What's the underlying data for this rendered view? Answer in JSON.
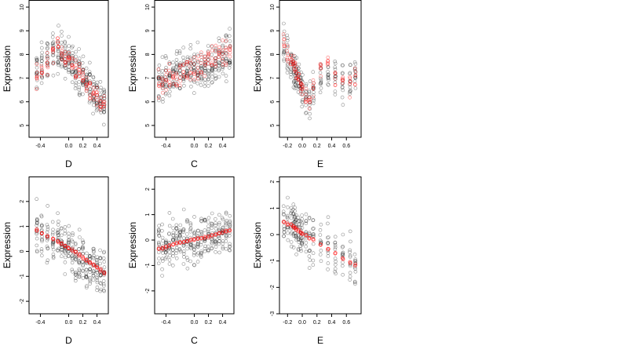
{
  "chart_data": [
    {
      "type": "scatter",
      "xlabel": "D",
      "ylabel": "Expression",
      "xlim": [
        -0.56,
        0.56
      ],
      "ylim": [
        4.5,
        10.3
      ],
      "xticks": [
        -0.4,
        0.0,
        0.2,
        0.4
      ],
      "xtick_labels": [
        "-0.4",
        "0.0",
        "0.2",
        "0.4"
      ],
      "yticks": [
        5,
        6,
        7,
        8,
        9,
        10
      ],
      "ytick_labels": [
        "5",
        "6",
        "7",
        "8",
        "9",
        "10"
      ],
      "x_groups": [
        -0.45,
        -0.38,
        -0.3,
        -0.22,
        -0.15,
        -0.1,
        -0.05,
        0.0,
        0.05,
        0.1,
        0.15,
        0.2,
        0.25,
        0.3,
        0.35,
        0.4,
        0.45,
        0.5
      ],
      "observed": {
        "trend": [
          7.3,
          7.5,
          7.8,
          8.1,
          8.2,
          8.0,
          7.9,
          7.7,
          7.6,
          7.5,
          7.3,
          7.0,
          6.9,
          6.7,
          6.5,
          6.3,
          6.1,
          5.9
        ],
        "spread": 0.9,
        "per_group": 16,
        "color": "#000000"
      },
      "fitted": {
        "trend": [
          7.0,
          7.3,
          7.7,
          8.2,
          8.3,
          8.1,
          7.9,
          7.8,
          7.6,
          7.4,
          7.2,
          7.0,
          6.8,
          6.6,
          6.4,
          6.2,
          6.0,
          5.8
        ],
        "spread": 0.45,
        "per_group": 7,
        "color": "#ff0000"
      }
    },
    {
      "type": "scatter",
      "xlabel": "C",
      "ylabel": "Expression",
      "xlim": [
        -0.56,
        0.56
      ],
      "ylim": [
        4.5,
        10.3
      ],
      "xticks": [
        -0.4,
        0.0,
        0.2,
        0.4
      ],
      "xtick_labels": [
        "-0.4",
        "0.0",
        "0.2",
        "0.4"
      ],
      "yticks": [
        5,
        6,
        7,
        8,
        9,
        10
      ],
      "ytick_labels": [
        "5",
        "6",
        "7",
        "8",
        "9",
        "10"
      ],
      "x_groups": [
        -0.5,
        -0.45,
        -0.4,
        -0.35,
        -0.3,
        -0.25,
        -0.2,
        -0.15,
        -0.1,
        -0.05,
        0.0,
        0.05,
        0.1,
        0.15,
        0.2,
        0.25,
        0.3,
        0.35,
        0.4,
        0.45,
        0.5
      ],
      "observed": {
        "trend": [
          6.8,
          6.9,
          7.0,
          7.0,
          7.1,
          7.1,
          7.2,
          7.2,
          7.3,
          7.3,
          7.3,
          7.4,
          7.4,
          7.5,
          7.5,
          7.6,
          7.6,
          7.7,
          7.8,
          7.9,
          8.0
        ],
        "spread": 0.9,
        "per_group": 14,
        "color": "#000000"
      },
      "fitted": {
        "trend": [
          6.7,
          6.8,
          6.9,
          7.0,
          7.0,
          7.1,
          7.2,
          7.3,
          7.3,
          7.4,
          7.4,
          7.5,
          7.6,
          7.6,
          7.7,
          7.8,
          7.9,
          8.0,
          8.1,
          8.2,
          8.3
        ],
        "spread": 0.55,
        "per_group": 6,
        "color": "#ff0000"
      }
    },
    {
      "type": "scatter",
      "xlabel": "E",
      "ylabel": "Expression",
      "xlim": [
        -0.31,
        0.8
      ],
      "ylim": [
        4.5,
        10.3
      ],
      "xticks": [
        -0.2,
        0.0,
        0.2,
        0.4,
        0.6
      ],
      "xtick_labels": [
        "-0.2",
        "0.0",
        "0.2",
        "0.4",
        "0.6"
      ],
      "yticks": [
        5,
        6,
        7,
        8,
        9,
        10
      ],
      "ytick_labels": [
        "5",
        "6",
        "7",
        "8",
        "9",
        "10"
      ],
      "x_groups": [
        -0.25,
        -0.2,
        -0.15,
        -0.12,
        -0.1,
        -0.08,
        -0.05,
        -0.02,
        0.0,
        0.05,
        0.1,
        0.15,
        0.25,
        0.35,
        0.45,
        0.55,
        0.65,
        0.72
      ],
      "observed": {
        "trend": [
          8.3,
          8.0,
          7.7,
          7.5,
          7.3,
          7.1,
          6.9,
          6.7,
          6.5,
          6.3,
          6.2,
          6.4,
          7.0,
          7.3,
          7.0,
          6.8,
          6.9,
          7.2
        ],
        "spread": 0.9,
        "per_group": 12,
        "color": "#000000"
      },
      "fitted": {
        "trend": [
          8.4,
          8.1,
          7.8,
          7.6,
          7.4,
          7.2,
          7.0,
          6.8,
          6.6,
          6.3,
          6.1,
          6.5,
          7.4,
          7.6,
          7.1,
          6.8,
          6.7,
          7.0
        ],
        "spread": 0.4,
        "per_group": 6,
        "color": "#ff0000"
      }
    },
    {
      "type": "scatter",
      "xlabel": "D",
      "ylabel": "Expression",
      "xlim": [
        -0.56,
        0.56
      ],
      "ylim": [
        -2.5,
        3.0
      ],
      "xticks": [
        -0.4,
        0.0,
        0.2,
        0.4
      ],
      "xtick_labels": [
        "-0.4",
        "0.0",
        "0.2",
        "0.4"
      ],
      "yticks": [
        -2,
        -1,
        0,
        1,
        2
      ],
      "ytick_labels": [
        "-2",
        "-1",
        "0",
        "1",
        "2"
      ],
      "x_groups": [
        -0.45,
        -0.38,
        -0.3,
        -0.22,
        -0.15,
        -0.1,
        -0.05,
        0.0,
        0.05,
        0.1,
        0.15,
        0.2,
        0.25,
        0.3,
        0.35,
        0.4,
        0.45,
        0.5
      ],
      "observed": {
        "trend": [
          0.8,
          0.7,
          0.6,
          0.5,
          0.4,
          0.3,
          0.2,
          0.1,
          0.0,
          -0.1,
          -0.2,
          -0.3,
          -0.4,
          -0.5,
          -0.6,
          -0.7,
          -0.8,
          -0.9
        ],
        "spread": 0.9,
        "per_group": 16,
        "color": "#000000"
      },
      "fitted": {
        "trend": [
          0.85,
          0.72,
          0.6,
          0.5,
          0.38,
          0.3,
          0.22,
          0.12,
          0.03,
          -0.06,
          -0.15,
          -0.25,
          -0.35,
          -0.45,
          -0.55,
          -0.65,
          -0.75,
          -0.85
        ],
        "spread": 0.06,
        "per_group": 5,
        "color": "#ff0000"
      }
    },
    {
      "type": "scatter",
      "xlabel": "C",
      "ylabel": "Expression",
      "xlim": [
        -0.56,
        0.56
      ],
      "ylim": [
        -2.9,
        2.5
      ],
      "xticks": [
        -0.4,
        0.0,
        0.2,
        0.4
      ],
      "xtick_labels": [
        "-0.4",
        "0.0",
        "0.2",
        "0.4"
      ],
      "yticks": [
        -2,
        -1,
        0,
        1,
        2
      ],
      "ytick_labels": [
        "-2",
        "-1",
        "0",
        "1",
        "2"
      ],
      "x_groups": [
        -0.5,
        -0.45,
        -0.4,
        -0.35,
        -0.3,
        -0.25,
        -0.2,
        -0.15,
        -0.1,
        -0.05,
        0.0,
        0.05,
        0.1,
        0.15,
        0.2,
        0.25,
        0.3,
        0.35,
        0.4,
        0.45,
        0.5
      ],
      "observed": {
        "trend": [
          -0.3,
          -0.25,
          -0.2,
          -0.18,
          -0.15,
          -0.12,
          -0.1,
          -0.05,
          -0.02,
          0.0,
          0.02,
          0.05,
          0.08,
          0.1,
          0.13,
          0.17,
          0.2,
          0.25,
          0.3,
          0.35,
          0.4
        ],
        "spread": 0.9,
        "per_group": 14,
        "color": "#000000"
      },
      "fitted": {
        "trend": [
          -0.35,
          -0.3,
          -0.26,
          -0.22,
          -0.18,
          -0.14,
          -0.1,
          -0.07,
          -0.04,
          -0.01,
          0.02,
          0.05,
          0.08,
          0.11,
          0.14,
          0.18,
          0.22,
          0.26,
          0.3,
          0.34,
          0.38
        ],
        "spread": 0.05,
        "per_group": 4,
        "color": "#ff0000"
      }
    },
    {
      "type": "scatter",
      "xlabel": "E",
      "ylabel": "Expression",
      "xlim": [
        -0.31,
        0.8
      ],
      "ylim": [
        -3.0,
        2.2
      ],
      "xticks": [
        -0.2,
        0.0,
        0.2,
        0.4,
        0.6
      ],
      "xtick_labels": [
        "-0.2",
        "0.0",
        "0.2",
        "0.4",
        "0.6"
      ],
      "yticks": [
        -3,
        -2,
        -1,
        0,
        1,
        2
      ],
      "ytick_labels": [
        "-3",
        "-2",
        "-1",
        "0",
        "1",
        "2"
      ],
      "x_groups": [
        -0.25,
        -0.2,
        -0.15,
        -0.12,
        -0.1,
        -0.08,
        -0.05,
        -0.02,
        0.0,
        0.05,
        0.1,
        0.15,
        0.25,
        0.35,
        0.45,
        0.55,
        0.65,
        0.72
      ],
      "observed": {
        "trend": [
          0.6,
          0.5,
          0.4,
          0.35,
          0.3,
          0.25,
          0.2,
          0.1,
          0.05,
          -0.05,
          -0.1,
          -0.2,
          -0.35,
          -0.55,
          -0.7,
          -0.9,
          -1.0,
          -1.1
        ],
        "spread": 0.9,
        "per_group": 12,
        "color": "#000000"
      },
      "fitted": {
        "trend": [
          0.5,
          0.42,
          0.35,
          0.3,
          0.25,
          0.2,
          0.15,
          0.08,
          0.03,
          -0.04,
          -0.12,
          -0.2,
          -0.38,
          -0.55,
          -0.72,
          -0.9,
          -1.05,
          -1.15
        ],
        "spread": 0.05,
        "per_group": 4,
        "color": "#ff0000"
      }
    }
  ]
}
